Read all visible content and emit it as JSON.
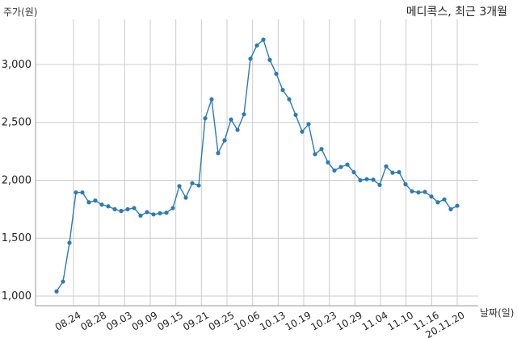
{
  "chart_data": {
    "type": "line",
    "title": "메디콕스, 최근 3개월",
    "ylabel": "주가(원)",
    "xlabel": "날짜(일)",
    "ylim": [
      1000,
      3350
    ],
    "yticks": [
      1000,
      1500,
      2000,
      2500,
      3000
    ],
    "ytick_labels": [
      "1,000",
      "1,500",
      "2,000",
      "2,500",
      "3,000"
    ],
    "xticks": [
      "08.24",
      "08.28",
      "09.03",
      "09.09",
      "09.15",
      "09.21",
      "09.25",
      "10.06",
      "10.13",
      "10.19",
      "10.23",
      "10.29",
      "11.04",
      "11.10",
      "11.16",
      "20.11.20"
    ],
    "grid": true,
    "legend": "none",
    "colors": {
      "line": "#2b7bb4",
      "grid": "#cccccc"
    },
    "series": [
      {
        "values": [
          1040,
          1125,
          1460,
          1895,
          1895,
          1810,
          1825,
          1790,
          1775,
          1750,
          1735,
          1750,
          1760,
          1695,
          1725,
          1705,
          1715,
          1720,
          1760,
          1950,
          1850,
          1975,
          1955,
          2535,
          2700,
          2235,
          2345,
          2525,
          2435,
          2570,
          3050,
          3165,
          3215,
          3040,
          2920,
          2780,
          2700,
          2565,
          2420,
          2485,
          2225,
          2270,
          2155,
          2085,
          2115,
          2135,
          2070,
          2000,
          2010,
          2005,
          1960,
          2120,
          2065,
          2070,
          1965,
          1905,
          1895,
          1900,
          1860,
          1810,
          1835,
          1750,
          1780
        ]
      }
    ]
  }
}
